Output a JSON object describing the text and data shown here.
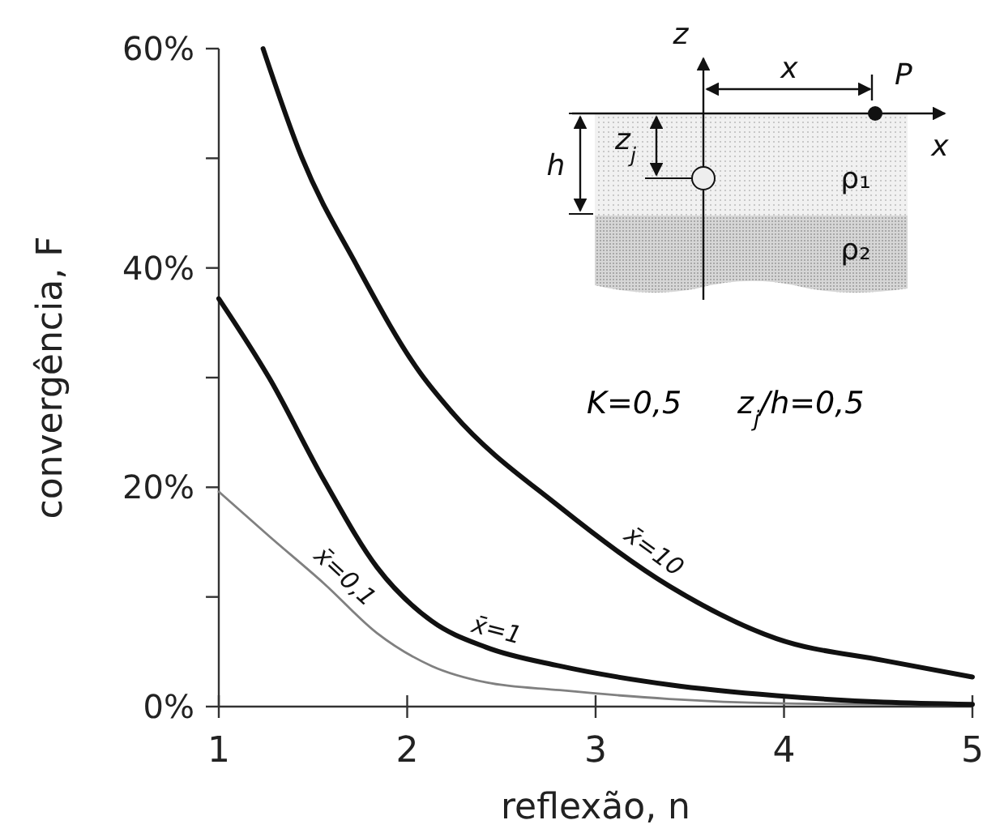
{
  "chart_data": {
    "type": "line",
    "xlabel": "reflexão, n",
    "ylabel": "convergência, F",
    "xlim": [
      1,
      5
    ],
    "xticks": [
      1,
      2,
      3,
      4,
      5
    ],
    "ylim": [
      0,
      60
    ],
    "yticks": [
      {
        "value": 0,
        "label": "0%"
      },
      {
        "value": 10,
        "label": null
      },
      {
        "value": 20,
        "label": "20%"
      },
      {
        "value": 30,
        "label": null
      },
      {
        "value": 40,
        "label": "40%"
      },
      {
        "value": 50,
        "label": null
      },
      {
        "value": 60,
        "label": "60%"
      }
    ],
    "grid": false,
    "marker": "none",
    "line_style": "solid",
    "series": [
      {
        "name": "x̄=0,1",
        "color": "#808080",
        "x": [
          1,
          1.27,
          1.56,
          1.84,
          2.13,
          2.42,
          2.81,
          3.39,
          3.96,
          4.53,
          5
        ],
        "values": [
          19.6,
          15.5,
          11.2,
          6.7,
          3.7,
          2.2,
          1.5,
          0.7,
          0.3,
          0.2,
          0.1
        ]
      },
      {
        "name": "x̄=1",
        "color": "#111111",
        "x": [
          1,
          1.27,
          1.56,
          1.84,
          2.13,
          2.42,
          2.81,
          3.39,
          3.96,
          4.53,
          5
        ],
        "values": [
          37.2,
          29.9,
          20.6,
          12.7,
          7.8,
          5.4,
          3.7,
          2.0,
          1.0,
          0.4,
          0.2
        ]
      },
      {
        "name": "x̄=10",
        "color": "#111111",
        "x": [
          1.235,
          1.44,
          1.73,
          2.07,
          2.24,
          2.81,
          3.39,
          3.96,
          4.53,
          5
        ],
        "values": [
          60,
          50.1,
          40.3,
          30.4,
          26.8,
          18.2,
          11.0,
          6.2,
          4.2,
          2.7
        ]
      }
    ],
    "annotations": [
      "K=0,5",
      "z$_{j}$/h=0,5",
      "z",
      "x",
      "P",
      "x",
      "h",
      "z$_{j}$",
      "ρ₁",
      "ρ₂"
    ]
  }
}
